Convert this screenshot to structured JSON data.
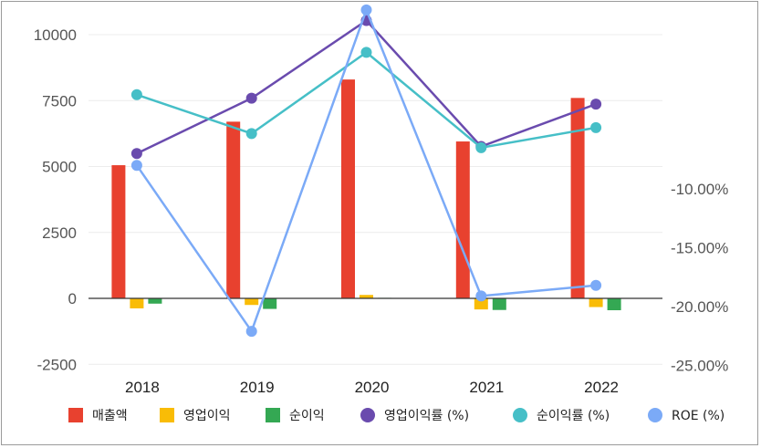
{
  "chart_data": {
    "type": "bar",
    "categories": [
      "2018",
      "2019",
      "2020",
      "2021",
      "2022"
    ],
    "bar_series": [
      {
        "name": "매출액",
        "values": [
          5050,
          6700,
          8300,
          5950,
          7600
        ],
        "color": "#E8412F"
      },
      {
        "name": "영업이익",
        "values": [
          -380,
          -250,
          130,
          -420,
          -330
        ],
        "color": "#F9BC06"
      },
      {
        "name": "순이익",
        "values": [
          -200,
          -400,
          20,
          -440,
          -450
        ],
        "color": "#34A853"
      }
    ],
    "line_series": [
      {
        "name": "영업이익률 (%)",
        "values": [
          -7.0,
          -2.3,
          4.3,
          -6.4,
          -2.8
        ],
        "color": "#6A4BAE"
      },
      {
        "name": "순이익률 (%)",
        "values": [
          -2.0,
          -5.3,
          1.6,
          -6.5,
          -4.8
        ],
        "color": "#46BFC7"
      },
      {
        "name": "ROE (%)",
        "values": [
          -8.0,
          -22.1,
          5.2,
          -19.1,
          -18.2
        ],
        "color": "#7BAAF7"
      }
    ],
    "y_left": {
      "ticks": [
        10000,
        7500,
        5000,
        2500,
        0,
        -2500
      ],
      "tick_labels": [
        "10000",
        "7500",
        "5000",
        "2500",
        "0",
        "-2500"
      ],
      "range": [
        -2500,
        10000
      ]
    },
    "y_right": {
      "ticks": [
        -10,
        -15,
        -20,
        -25
      ],
      "tick_labels": [
        "-10.00%",
        "-15.00%",
        "-20.00%",
        "-25.00%"
      ]
    },
    "legend_position": "bottom",
    "grid": true
  }
}
